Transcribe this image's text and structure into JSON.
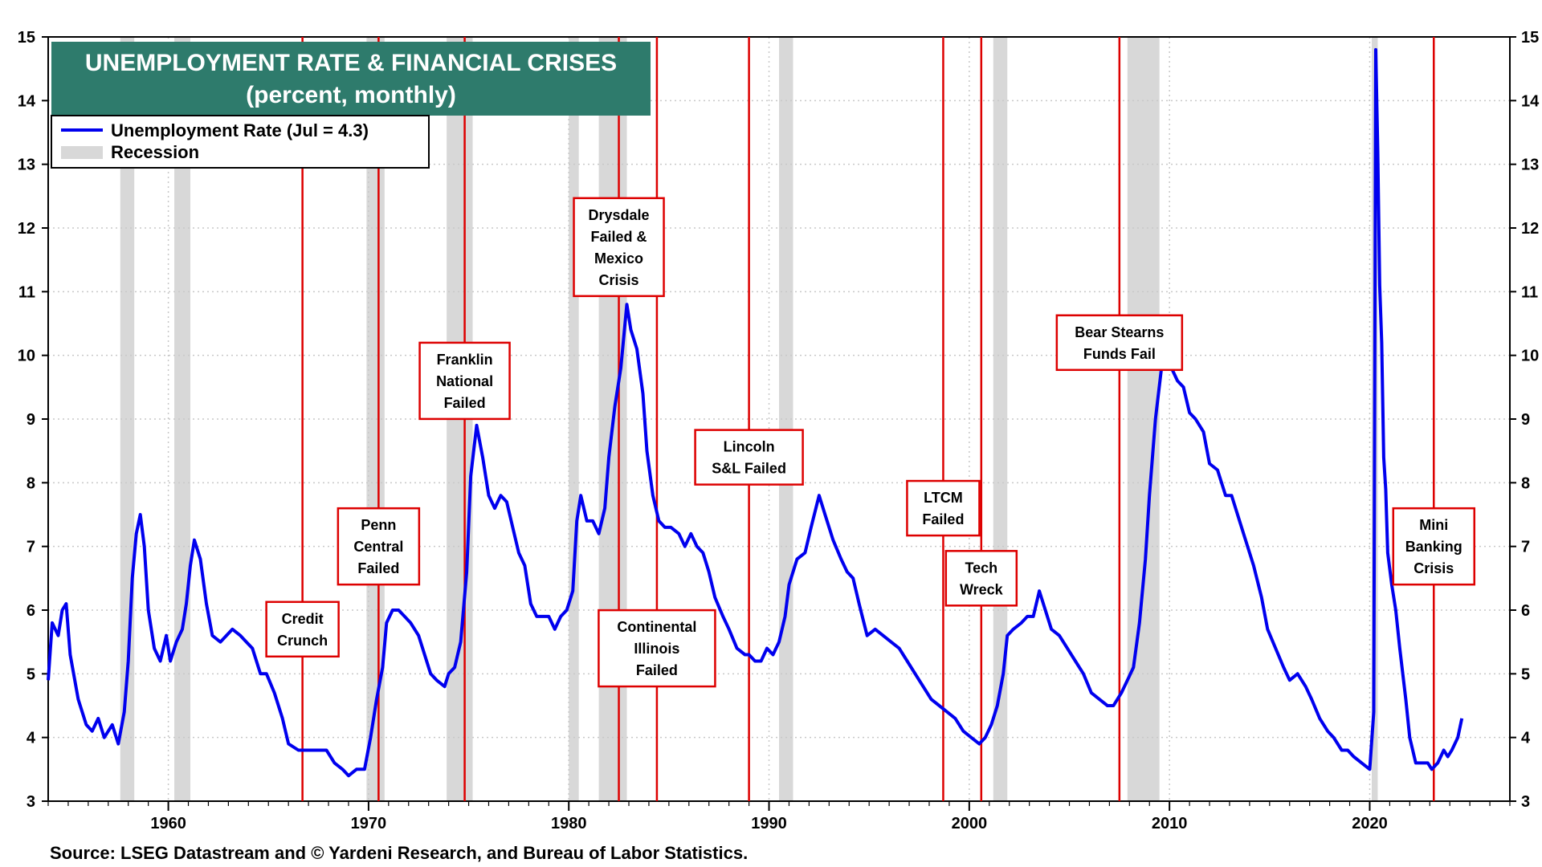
{
  "chart_data": {
    "type": "line",
    "title": "UNEMPLOYMENT RATE & FINANCIAL CRISES",
    "subtitle": "(percent, monthly)",
    "xlabel": "",
    "ylabel": "",
    "xlim": [
      1954.0,
      2027.0
    ],
    "ylim": [
      3,
      15
    ],
    "y_ticks": [
      3,
      4,
      5,
      6,
      7,
      8,
      9,
      10,
      11,
      12,
      13,
      14,
      15
    ],
    "x_ticks": [
      1960,
      1970,
      1980,
      1990,
      2000,
      2010,
      2020
    ],
    "grid": true,
    "legend_position": "top-left",
    "legend": {
      "series_label": "Unemployment Rate (Jul = 4.3)",
      "recession_label": "Recession"
    },
    "colors": {
      "series": "#0000ee",
      "event": "#dd0000",
      "recession": "#d8d8d8",
      "title_bg": "#2e7b6c",
      "title_fg": "#ffffff",
      "grid": "#c8c8c8"
    },
    "series": [
      {
        "name": "Unemployment Rate",
        "points": [
          [
            1954.0,
            4.9
          ],
          [
            1954.2,
            5.8
          ],
          [
            1954.5,
            5.6
          ],
          [
            1954.7,
            6.0
          ],
          [
            1954.9,
            6.1
          ],
          [
            1955.1,
            5.3
          ],
          [
            1955.5,
            4.6
          ],
          [
            1955.9,
            4.2
          ],
          [
            1956.2,
            4.1
          ],
          [
            1956.5,
            4.3
          ],
          [
            1956.8,
            4.0
          ],
          [
            1957.2,
            4.2
          ],
          [
            1957.5,
            3.9
          ],
          [
            1957.8,
            4.4
          ],
          [
            1958.0,
            5.2
          ],
          [
            1958.2,
            6.5
          ],
          [
            1958.4,
            7.2
          ],
          [
            1958.6,
            7.5
          ],
          [
            1958.8,
            7.0
          ],
          [
            1959.0,
            6.0
          ],
          [
            1959.3,
            5.4
          ],
          [
            1959.6,
            5.2
          ],
          [
            1959.9,
            5.6
          ],
          [
            1960.1,
            5.2
          ],
          [
            1960.4,
            5.5
          ],
          [
            1960.7,
            5.7
          ],
          [
            1960.9,
            6.1
          ],
          [
            1961.1,
            6.7
          ],
          [
            1961.3,
            7.1
          ],
          [
            1961.6,
            6.8
          ],
          [
            1961.9,
            6.1
          ],
          [
            1962.2,
            5.6
          ],
          [
            1962.6,
            5.5
          ],
          [
            1962.9,
            5.6
          ],
          [
            1963.2,
            5.7
          ],
          [
            1963.6,
            5.6
          ],
          [
            1963.9,
            5.5
          ],
          [
            1964.2,
            5.4
          ],
          [
            1964.6,
            5.0
          ],
          [
            1964.9,
            5.0
          ],
          [
            1965.3,
            4.7
          ],
          [
            1965.7,
            4.3
          ],
          [
            1966.0,
            3.9
          ],
          [
            1966.5,
            3.8
          ],
          [
            1967.0,
            3.8
          ],
          [
            1967.5,
            3.8
          ],
          [
            1967.9,
            3.8
          ],
          [
            1968.3,
            3.6
          ],
          [
            1968.7,
            3.5
          ],
          [
            1969.0,
            3.4
          ],
          [
            1969.4,
            3.5
          ],
          [
            1969.8,
            3.5
          ],
          [
            1970.1,
            4.0
          ],
          [
            1970.4,
            4.6
          ],
          [
            1970.7,
            5.1
          ],
          [
            1970.9,
            5.8
          ],
          [
            1971.2,
            6.0
          ],
          [
            1971.5,
            6.0
          ],
          [
            1971.8,
            5.9
          ],
          [
            1972.1,
            5.8
          ],
          [
            1972.5,
            5.6
          ],
          [
            1972.8,
            5.3
          ],
          [
            1973.1,
            5.0
          ],
          [
            1973.4,
            4.9
          ],
          [
            1973.8,
            4.8
          ],
          [
            1974.0,
            5.0
          ],
          [
            1974.3,
            5.1
          ],
          [
            1974.6,
            5.5
          ],
          [
            1974.9,
            6.6
          ],
          [
            1975.1,
            8.1
          ],
          [
            1975.4,
            8.9
          ],
          [
            1975.7,
            8.4
          ],
          [
            1976.0,
            7.8
          ],
          [
            1976.3,
            7.6
          ],
          [
            1976.6,
            7.8
          ],
          [
            1976.9,
            7.7
          ],
          [
            1977.2,
            7.3
          ],
          [
            1977.5,
            6.9
          ],
          [
            1977.8,
            6.7
          ],
          [
            1978.1,
            6.1
          ],
          [
            1978.4,
            5.9
          ],
          [
            1978.7,
            5.9
          ],
          [
            1979.0,
            5.9
          ],
          [
            1979.3,
            5.7
          ],
          [
            1979.6,
            5.9
          ],
          [
            1979.9,
            6.0
          ],
          [
            1980.2,
            6.3
          ],
          [
            1980.4,
            7.4
          ],
          [
            1980.6,
            7.8
          ],
          [
            1980.9,
            7.4
          ],
          [
            1981.2,
            7.4
          ],
          [
            1981.5,
            7.2
          ],
          [
            1981.8,
            7.6
          ],
          [
            1982.0,
            8.4
          ],
          [
            1982.3,
            9.2
          ],
          [
            1982.6,
            9.8
          ],
          [
            1982.9,
            10.8
          ],
          [
            1983.1,
            10.4
          ],
          [
            1983.4,
            10.1
          ],
          [
            1983.7,
            9.4
          ],
          [
            1983.9,
            8.5
          ],
          [
            1984.2,
            7.8
          ],
          [
            1984.5,
            7.4
          ],
          [
            1984.8,
            7.3
          ],
          [
            1985.1,
            7.3
          ],
          [
            1985.5,
            7.2
          ],
          [
            1985.8,
            7.0
          ],
          [
            1986.1,
            7.2
          ],
          [
            1986.4,
            7.0
          ],
          [
            1986.7,
            6.9
          ],
          [
            1987.0,
            6.6
          ],
          [
            1987.3,
            6.2
          ],
          [
            1987.7,
            5.9
          ],
          [
            1988.0,
            5.7
          ],
          [
            1988.4,
            5.4
          ],
          [
            1988.8,
            5.3
          ],
          [
            1989.0,
            5.3
          ],
          [
            1989.3,
            5.2
          ],
          [
            1989.6,
            5.2
          ],
          [
            1989.9,
            5.4
          ],
          [
            1990.2,
            5.3
          ],
          [
            1990.5,
            5.5
          ],
          [
            1990.8,
            5.9
          ],
          [
            1991.0,
            6.4
          ],
          [
            1991.4,
            6.8
          ],
          [
            1991.8,
            6.9
          ],
          [
            1992.1,
            7.3
          ],
          [
            1992.5,
            7.8
          ],
          [
            1992.8,
            7.5
          ],
          [
            1993.2,
            7.1
          ],
          [
            1993.6,
            6.8
          ],
          [
            1993.9,
            6.6
          ],
          [
            1994.2,
            6.5
          ],
          [
            1994.5,
            6.1
          ],
          [
            1994.9,
            5.6
          ],
          [
            1995.3,
            5.7
          ],
          [
            1995.7,
            5.6
          ],
          [
            1996.1,
            5.5
          ],
          [
            1996.5,
            5.4
          ],
          [
            1996.9,
            5.2
          ],
          [
            1997.3,
            5.0
          ],
          [
            1997.7,
            4.8
          ],
          [
            1998.1,
            4.6
          ],
          [
            1998.5,
            4.5
          ],
          [
            1998.9,
            4.4
          ],
          [
            1999.3,
            4.3
          ],
          [
            1999.7,
            4.1
          ],
          [
            2000.1,
            4.0
          ],
          [
            2000.5,
            3.9
          ],
          [
            2000.8,
            4.0
          ],
          [
            2001.1,
            4.2
          ],
          [
            2001.4,
            4.5
          ],
          [
            2001.7,
            5.0
          ],
          [
            2001.9,
            5.6
          ],
          [
            2002.2,
            5.7
          ],
          [
            2002.6,
            5.8
          ],
          [
            2002.9,
            5.9
          ],
          [
            2003.2,
            5.9
          ],
          [
            2003.5,
            6.3
          ],
          [
            2003.8,
            6.0
          ],
          [
            2004.1,
            5.7
          ],
          [
            2004.5,
            5.6
          ],
          [
            2004.9,
            5.4
          ],
          [
            2005.3,
            5.2
          ],
          [
            2005.7,
            5.0
          ],
          [
            2006.1,
            4.7
          ],
          [
            2006.5,
            4.6
          ],
          [
            2006.9,
            4.5
          ],
          [
            2007.2,
            4.5
          ],
          [
            2007.6,
            4.7
          ],
          [
            2007.9,
            4.9
          ],
          [
            2008.2,
            5.1
          ],
          [
            2008.5,
            5.8
          ],
          [
            2008.8,
            6.8
          ],
          [
            2009.0,
            7.8
          ],
          [
            2009.3,
            9.0
          ],
          [
            2009.6,
            9.8
          ],
          [
            2009.8,
            10.0
          ],
          [
            2010.1,
            9.8
          ],
          [
            2010.4,
            9.6
          ],
          [
            2010.7,
            9.5
          ],
          [
            2011.0,
            9.1
          ],
          [
            2011.3,
            9.0
          ],
          [
            2011.7,
            8.8
          ],
          [
            2012.0,
            8.3
          ],
          [
            2012.4,
            8.2
          ],
          [
            2012.8,
            7.8
          ],
          [
            2013.1,
            7.8
          ],
          [
            2013.5,
            7.4
          ],
          [
            2013.9,
            7.0
          ],
          [
            2014.2,
            6.7
          ],
          [
            2014.6,
            6.2
          ],
          [
            2014.9,
            5.7
          ],
          [
            2015.3,
            5.4
          ],
          [
            2015.7,
            5.1
          ],
          [
            2016.0,
            4.9
          ],
          [
            2016.4,
            5.0
          ],
          [
            2016.8,
            4.8
          ],
          [
            2017.1,
            4.6
          ],
          [
            2017.5,
            4.3
          ],
          [
            2017.9,
            4.1
          ],
          [
            2018.2,
            4.0
          ],
          [
            2018.6,
            3.8
          ],
          [
            2018.9,
            3.8
          ],
          [
            2019.2,
            3.7
          ],
          [
            2019.6,
            3.6
          ],
          [
            2020.0,
            3.5
          ],
          [
            2020.2,
            4.4
          ],
          [
            2020.3,
            14.8
          ],
          [
            2020.4,
            13.2
          ],
          [
            2020.5,
            11.1
          ],
          [
            2020.6,
            10.2
          ],
          [
            2020.7,
            8.4
          ],
          [
            2020.8,
            7.9
          ],
          [
            2020.9,
            6.9
          ],
          [
            2021.1,
            6.4
          ],
          [
            2021.3,
            6.0
          ],
          [
            2021.5,
            5.4
          ],
          [
            2021.8,
            4.6
          ],
          [
            2022.0,
            4.0
          ],
          [
            2022.3,
            3.6
          ],
          [
            2022.6,
            3.6
          ],
          [
            2022.9,
            3.6
          ],
          [
            2023.1,
            3.5
          ],
          [
            2023.4,
            3.6
          ],
          [
            2023.7,
            3.8
          ],
          [
            2023.9,
            3.7
          ],
          [
            2024.1,
            3.8
          ],
          [
            2024.4,
            4.0
          ],
          [
            2024.6,
            4.3
          ]
        ]
      }
    ],
    "recessions": [
      [
        1957.6,
        1958.3
      ],
      [
        1960.3,
        1961.1
      ],
      [
        1969.9,
        1970.8
      ],
      [
        1973.9,
        1975.2
      ],
      [
        1980.0,
        1980.5
      ],
      [
        1981.5,
        1982.9
      ],
      [
        1990.5,
        1991.2
      ],
      [
        2001.2,
        2001.9
      ],
      [
        2007.9,
        2009.5
      ],
      [
        2020.1,
        2020.4
      ]
    ],
    "events": [
      {
        "year": 1966.7,
        "lines": [
          "Credit",
          "Crunch"
        ],
        "anchor_value": 5.7
      },
      {
        "year": 1970.5,
        "lines": [
          "Penn",
          "Central",
          "Failed"
        ],
        "anchor_value": 7.0
      },
      {
        "year": 1974.8,
        "lines": [
          "Franklin",
          "National",
          "Failed"
        ],
        "anchor_value": 9.6
      },
      {
        "year": 1982.5,
        "lines": [
          "Drysdale",
          "Failed &",
          "Mexico",
          "Crisis"
        ],
        "anchor_value": 11.7
      },
      {
        "year": 1984.4,
        "lines": [
          "Continental",
          "Illinois",
          "Failed"
        ],
        "anchor_value": 5.4
      },
      {
        "year": 1989.0,
        "lines": [
          "Lincoln",
          "S&L Failed"
        ],
        "anchor_value": 8.4
      },
      {
        "year": 1998.7,
        "lines": [
          "LTCM",
          "Failed"
        ],
        "anchor_value": 7.6
      },
      {
        "year": 2000.6,
        "lines": [
          "Tech",
          "Wreck"
        ],
        "anchor_value": 6.5
      },
      {
        "year": 2007.5,
        "lines": [
          "Bear Stearns",
          "Funds Fail"
        ],
        "anchor_value": 10.2
      },
      {
        "year": 2023.2,
        "lines": [
          "Mini",
          "Banking",
          "Crisis"
        ],
        "anchor_value": 7.0
      }
    ],
    "source": "Source: LSEG Datastream and © Yardeni Research, and Bureau of Labor Statistics."
  }
}
